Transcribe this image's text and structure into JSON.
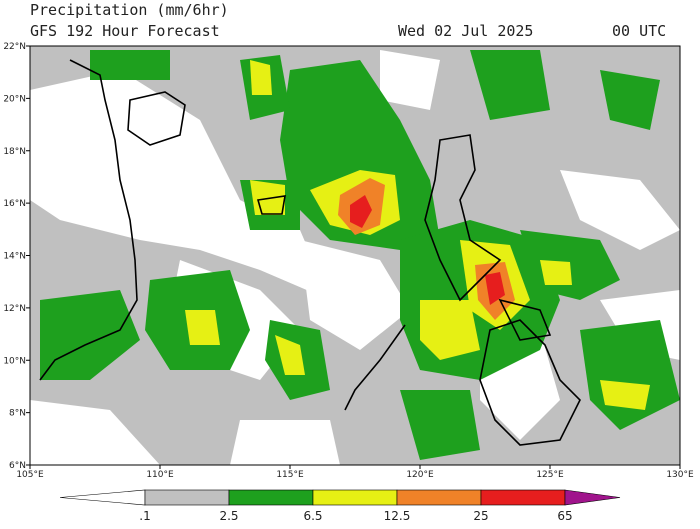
{
  "header": {
    "title": "Precipitation (mm/6hr)",
    "subtitle": "GFS 192 Hour Forecast",
    "date": "Wed 02 Jul 2025",
    "time": "00 UTC"
  },
  "axes": {
    "lat_labels": [
      "22°N",
      "20°N",
      "18°N",
      "16°N",
      "14°N",
      "12°N",
      "10°N",
      "8°N",
      "6°N"
    ],
    "lon_labels": [
      "105°E",
      "110°E",
      "115°E",
      "120°E",
      "125°E",
      "130°E"
    ]
  },
  "colorbar": {
    "labels": [
      ".1",
      "2.5",
      "6.5",
      "12.5",
      "25",
      "65"
    ],
    "colors": [
      "#ffffff",
      "#c0c0c0",
      "#1ea01e",
      "#e6f014",
      "#f08228",
      "#e61e1e",
      "#a0148c"
    ]
  }
}
